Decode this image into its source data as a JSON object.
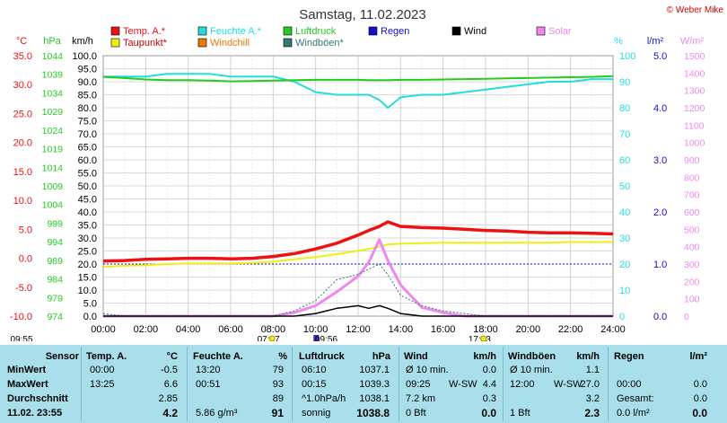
{
  "title": "Samstag, 11.02.2023",
  "copyright": "© Weber Mike",
  "legend": [
    {
      "label": "Temp. A.*",
      "color": "#ee1111"
    },
    {
      "label": "Feuchte A.*",
      "color": "#22dddd"
    },
    {
      "label": "Luftdruck",
      "color": "#22cc22"
    },
    {
      "label": "Regen",
      "color": "#1111cc"
    },
    {
      "label": "Wind",
      "color": "#000000"
    },
    {
      "label": "Solar",
      "color": "#ee88ee"
    },
    {
      "label": "Taupunkt*",
      "color": "#eeee11"
    },
    {
      "label": "Windchill",
      "color": "#ee7700"
    },
    {
      "label": "Windböen*",
      "color": "#337777"
    }
  ],
  "axes": {
    "temp": {
      "unit": "°C",
      "ticks": [
        "35.0",
        "30.0",
        "25.0",
        "20.0",
        "15.0",
        "10.0",
        "5.0",
        "0.0",
        "-5.0",
        "-10.0"
      ],
      "color": "#ee1111"
    },
    "press": {
      "unit": "hPa",
      "ticks": [
        "1044",
        "1039",
        "1034",
        "1029",
        "1024",
        "1019",
        "1014",
        "1009",
        "1004",
        "999",
        "994",
        "989",
        "984",
        "979",
        "974"
      ],
      "color": "#22cc22"
    },
    "wind": {
      "unit": "km/h",
      "ticks": [
        "100.0",
        "95.0",
        "90.0",
        "85.0",
        "80.0",
        "75.0",
        "70.0",
        "65.0",
        "60.0",
        "55.0",
        "50.0",
        "45.0",
        "40.0",
        "35.0",
        "30.0",
        "25.0",
        "20.0",
        "15.0",
        "10.0",
        "5.0",
        "0.0"
      ],
      "color": "#000000"
    },
    "hum": {
      "unit": "%",
      "ticks": [
        "100",
        "90",
        "80",
        "70",
        "60",
        "50",
        "40",
        "30",
        "20",
        "10",
        "0"
      ],
      "color": "#22dddd"
    },
    "rain": {
      "unit": "l/m²",
      "ticks": [
        "5.0",
        "4.0",
        "3.0",
        "2.0",
        "1.0",
        "0.0"
      ],
      "color": "#1111cc"
    },
    "solar": {
      "unit": "W/m²",
      "ticks": [
        "1500",
        "1400",
        "1300",
        "1200",
        "1100",
        "1000",
        "900",
        "800",
        "700",
        "600",
        "500",
        "400",
        "300",
        "200",
        "100",
        "0"
      ],
      "color": "#ee88ee"
    },
    "time": {
      "ticks": [
        "00:00",
        "02:00",
        "04:00",
        "06:00",
        "08:00",
        "10:00",
        "12:00",
        "14:00",
        "16:00",
        "18:00",
        "20:00",
        "22:00",
        "24:00"
      ]
    }
  },
  "markers": {
    "sunrise_left": "09:55",
    "sunrise": "07:47",
    "solarnoon": "09:56",
    "sunset": "17:43"
  },
  "chart_data": {
    "type": "line",
    "x_hours": [
      0,
      1,
      2,
      3,
      4,
      5,
      6,
      7,
      8,
      9,
      10,
      11,
      12,
      12.5,
      13,
      13.4,
      14,
      15,
      16,
      17,
      18,
      19,
      20,
      21,
      22,
      23,
      24
    ],
    "series": [
      {
        "name": "Temp. A.*",
        "axis": "temp",
        "values": [
          -0.5,
          -0.4,
          -0.2,
          -0.1,
          0,
          0,
          -0.1,
          0,
          0.3,
          0.8,
          1.6,
          2.6,
          4.0,
          4.8,
          5.5,
          6.3,
          5.5,
          5.3,
          5.2,
          5.0,
          4.8,
          4.7,
          4.5,
          4.4,
          4.4,
          4.3,
          4.2
        ]
      },
      {
        "name": "Taupunkt*",
        "axis": "temp",
        "values": [
          -1.5,
          -1.3,
          -1.2,
          -1.0,
          -0.9,
          -0.9,
          -0.9,
          -0.8,
          -0.6,
          -0.2,
          0.2,
          0.7,
          1.3,
          1.6,
          2.0,
          2.4,
          2.5,
          2.6,
          2.7,
          2.7,
          2.7,
          2.7,
          2.7,
          2.7,
          2.8,
          2.8,
          2.8
        ]
      },
      {
        "name": "Feuchte A.*",
        "axis": "hum",
        "values": [
          92,
          92,
          92,
          93,
          93,
          93,
          92,
          92,
          92,
          90,
          86,
          85,
          85,
          85,
          83,
          80,
          84,
          85,
          85,
          86,
          87,
          88,
          89,
          90,
          90,
          91,
          91
        ]
      },
      {
        "name": "Luftdruck",
        "axis": "press",
        "values": [
          1038.3,
          1038.0,
          1037.6,
          1037.4,
          1037.4,
          1037.3,
          1037.1,
          1037.2,
          1037.3,
          1037.4,
          1037.5,
          1037.5,
          1037.5,
          1037.4,
          1037.4,
          1037.4,
          1037.5,
          1037.5,
          1037.6,
          1037.7,
          1037.8,
          1037.9,
          1038.0,
          1038.1,
          1038.2,
          1038.3,
          1038.5
        ]
      },
      {
        "name": "Solar",
        "axis": "solar",
        "values": [
          0,
          0,
          0,
          0,
          0,
          0,
          0,
          0,
          0,
          20,
          60,
          140,
          230,
          310,
          440,
          320,
          180,
          50,
          20,
          0,
          0,
          0,
          0,
          0,
          0,
          0,
          0
        ]
      },
      {
        "name": "Windböen*",
        "axis": "wind",
        "values": [
          1,
          0,
          0,
          0,
          0,
          0,
          0,
          0,
          0,
          2,
          6,
          14,
          16,
          18,
          20,
          16,
          8,
          4,
          2,
          1,
          0,
          0,
          0,
          0,
          0,
          0,
          0
        ]
      },
      {
        "name": "Wind",
        "axis": "wind",
        "values": [
          0,
          0,
          0,
          0,
          0,
          0,
          0,
          0,
          0,
          0,
          1,
          3,
          4,
          3,
          4,
          3,
          1,
          0,
          0,
          0,
          0,
          0,
          0,
          0,
          0,
          0,
          0
        ]
      }
    ],
    "ylim_temp": [
      -10,
      35
    ],
    "ylim_hum": [
      0,
      100
    ],
    "ylim_press": [
      974,
      1044
    ],
    "ylim_solar": [
      0,
      1500
    ],
    "ylim_wind": [
      0,
      100
    ],
    "ylim_rain": [
      0,
      5
    ],
    "grid": true
  },
  "stats": {
    "headers": [
      "Sensor",
      "Temp. A.",
      "°C",
      "Feuchte A.",
      "%",
      "Luftdruck",
      "hPa",
      "Wind",
      "km/h",
      "Windböen",
      "km/h",
      "Regen",
      "l/m²"
    ],
    "rows": [
      {
        "label": "MinWert",
        "temp_time": "00:00",
        "temp_val": "-0.5",
        "hum_time": "13:20",
        "hum_val": "79",
        "press_time": "06:10",
        "press_val": "1037.1",
        "wind_a": "Ø 10 min.",
        "wind_val": "0.0",
        "gust_a": "Ø 10 min.",
        "gust_val": "1.1",
        "rain_a": "",
        "rain_val": ""
      },
      {
        "label": "MaxWert",
        "temp_time": "13:25",
        "temp_val": "6.6",
        "hum_time": "00:51",
        "hum_val": "93",
        "press_time": "00:15",
        "press_val": "1039.3",
        "wind_a": "09:25",
        "wind_dir": "W-SW",
        "wind_val": "4.4",
        "gust_a": "12:00",
        "gust_dir": "W-SW",
        "gust_val": "27.0",
        "rain_a": "00:00",
        "rain_val": "0.0"
      },
      {
        "label": "Durchschnitt",
        "temp_time": "",
        "temp_val": "2.85",
        "hum_time": "",
        "hum_val": "89",
        "press_time": "^1.0hPa/h",
        "press_val": "1038.1",
        "wind_a": "7.2 km",
        "wind_val": "0.3",
        "gust_a": "",
        "gust_val": "3.2",
        "rain_a": "Gesamt:",
        "rain_val": "0.0"
      },
      {
        "label": "11.02. 23:55",
        "temp_time": "",
        "temp_val": "4.2",
        "hum_time": "5.86 g/m³",
        "hum_val": "91",
        "press_time": "sonnig",
        "press_val": "1038.8",
        "wind_a": "0 Bft",
        "wind_val": "0.0",
        "gust_a": "1 Bft",
        "gust_val": "2.3",
        "rain_a": "0.0 l/m²",
        "rain_val": "0.0"
      }
    ]
  }
}
